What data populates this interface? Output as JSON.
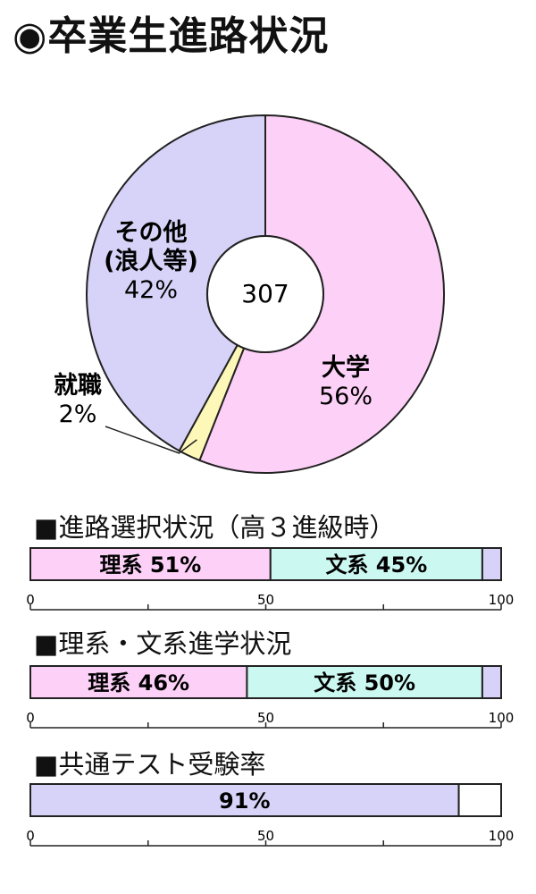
{
  "title": "◉卒業生進路状況",
  "chart_data": [
    {
      "type": "pie",
      "style": "donut",
      "center_label": "307",
      "slices": [
        {
          "label": "大学",
          "value": 56,
          "value_label": "56%",
          "color": "#fdd0f8"
        },
        {
          "label": "就職",
          "value": 2,
          "value_label": "2%",
          "color": "#fdf7b8"
        },
        {
          "label": "その他\n(浪人等)",
          "value": 42,
          "value_label": "42%",
          "color": "#d7d2f7"
        }
      ]
    },
    {
      "type": "bar",
      "stacked": true,
      "orientation": "horizontal",
      "title": "■進路選択状況（高３進級時）",
      "segments": [
        {
          "label": "理系 51%",
          "value": 51,
          "color": "#fdd0f8"
        },
        {
          "label": "文系 45%",
          "value": 45,
          "color": "#ccf8f2"
        },
        {
          "label": "",
          "value": 4,
          "color": "#d7d2f7"
        }
      ],
      "xlim": [
        0,
        100
      ],
      "tick_labels": [
        "0",
        "50",
        "100"
      ]
    },
    {
      "type": "bar",
      "stacked": true,
      "orientation": "horizontal",
      "title": "■理系・文系進学状況",
      "segments": [
        {
          "label": "理系 46%",
          "value": 46,
          "color": "#fdd0f8"
        },
        {
          "label": "文系 50%",
          "value": 50,
          "color": "#ccf8f2"
        },
        {
          "label": "",
          "value": 4,
          "color": "#d7d2f7"
        }
      ],
      "xlim": [
        0,
        100
      ],
      "tick_labels": [
        "0",
        "50",
        "100"
      ]
    },
    {
      "type": "bar",
      "stacked": true,
      "orientation": "horizontal",
      "title": "■共通テスト受験率",
      "segments": [
        {
          "label": "91%",
          "value": 91,
          "color": "#d7d2f7"
        },
        {
          "label": "",
          "value": 9,
          "color": "#ffffff"
        }
      ],
      "xlim": [
        0,
        100
      ],
      "tick_labels": [
        "0",
        "50",
        "100"
      ]
    }
  ]
}
